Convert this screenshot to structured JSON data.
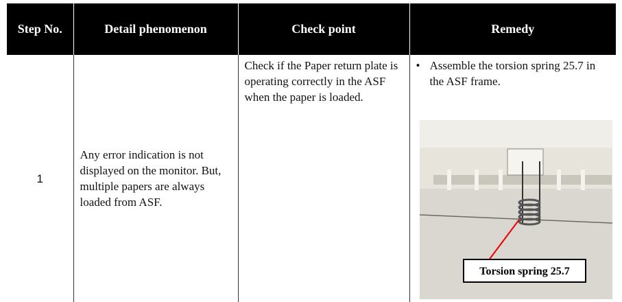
{
  "table": {
    "header": [
      "Step No.",
      "Detail phenomenon",
      "Check point",
      "Remedy"
    ],
    "rows": [
      {
        "step": "1",
        "detail": "Any error indication is not displayed on the monitor. But, multiple papers are always loaded from ASF.",
        "check": "Check if the Paper return plate is operating correctly in the ASF when the paper is loaded.",
        "remedy": "Assemble the torsion spring 25.7 in the ASF frame.",
        "image_label": "Torsion spring 25.7"
      }
    ]
  }
}
